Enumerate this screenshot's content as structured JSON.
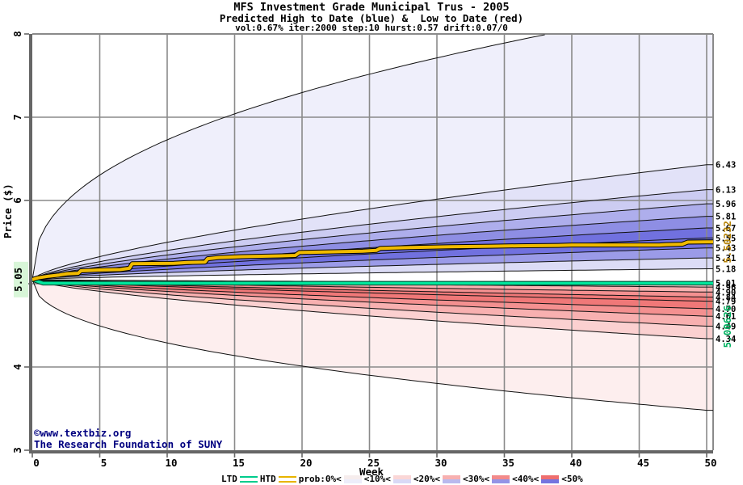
{
  "header": {
    "title": "MFS Investment Grade Municipal Trus - 2005",
    "subtitle": "Predicted High to Date (blue) &  Low to Date (red)",
    "params": "vol:0.67% iter:2000 step:10 hurst:0.57 drift:0.07/0"
  },
  "footer": {
    "line1": "©www.textbiz.org",
    "line2": "The Research Foundation of SUNY",
    "color": "#000080"
  },
  "chart_data": {
    "type": "area",
    "title": "MFS Investment Grade Municipal Trus - 2005",
    "subtitle": "Predicted High to Date (blue) &  Low to Date (red)",
    "params": "vol:0.67% iter:2000 step:10 hurst:0.57 drift:0.07/0",
    "xlabel": "Week",
    "ylabel": "Price ($)",
    "xlim": [
      0,
      50
    ],
    "ylim": [
      3,
      8
    ],
    "x_ticks": [
      0,
      5,
      10,
      15,
      20,
      25,
      30,
      35,
      40,
      45,
      50
    ],
    "y_ticks": [
      3,
      4,
      5,
      6,
      7,
      8
    ],
    "start_price": 5.05,
    "start_label": {
      "text": "5.05",
      "bg": "#d8f6d8"
    },
    "grid_color": "#8a8a8a",
    "axis_color": "#666666",
    "boundary_color": "#111111",
    "high_fan": {
      "description": "predicted High-to-Date percentile boundaries at week 50, inner to outer top-down",
      "boundaries": [
        6.43,
        6.13,
        5.96,
        5.81,
        5.67,
        5.55,
        5.43,
        5.31,
        5.18
      ],
      "boundary_exp": 0.7,
      "envelope": {
        "end": 8.35,
        "exp": 0.42,
        "clip": 8.0
      },
      "band_colors": [
        "#efeffb",
        "#e2e2f8",
        "#ccccf2",
        "#aeaeec",
        "#8e8ee4",
        "#7171df",
        "#7171df",
        "#9b9be8",
        "#dcdcf6"
      ]
    },
    "low_fan": {
      "description": "predicted Low-to-Date percentile boundaries at week 50, top-down (inner labels overlap in source)",
      "boundaries": [
        5.01,
        4.96,
        4.9,
        4.84,
        4.79,
        4.7,
        4.61,
        4.49,
        4.34
      ],
      "boundary_exp": 0.7,
      "envelope": {
        "end": 3.48,
        "exp": 0.45
      },
      "band_colors": [
        "#fbd0d0",
        "#f8b0b0",
        "#f49090",
        "#f07878",
        "#f07878",
        "#f49090",
        "#f8b0b0",
        "#fbd0d0",
        "#fdeeee"
      ]
    },
    "htd": {
      "name": "HTD",
      "final_value": 5.50232,
      "final_label": "5.50232",
      "color": "#f0ba00",
      "edge_color": "#000000",
      "label_color": "#b8860b",
      "points": [
        [
          0,
          5.05
        ],
        [
          0.4,
          5.07
        ],
        [
          1.2,
          5.09
        ],
        [
          2,
          5.105
        ],
        [
          2.6,
          5.12
        ],
        [
          3.4,
          5.125
        ],
        [
          3.6,
          5.155
        ],
        [
          5,
          5.165
        ],
        [
          6.5,
          5.17
        ],
        [
          7.2,
          5.185
        ],
        [
          7.4,
          5.24
        ],
        [
          10.5,
          5.245
        ],
        [
          11.5,
          5.255
        ],
        [
          12.8,
          5.26
        ],
        [
          13,
          5.3
        ],
        [
          13.8,
          5.315
        ],
        [
          15.5,
          5.325
        ],
        [
          18.5,
          5.335
        ],
        [
          19.5,
          5.34
        ],
        [
          19.8,
          5.375
        ],
        [
          23,
          5.385
        ],
        [
          24.5,
          5.39
        ],
        [
          25.5,
          5.4
        ],
        [
          25.8,
          5.425
        ],
        [
          28,
          5.435
        ],
        [
          31,
          5.445
        ],
        [
          34,
          5.45
        ],
        [
          36,
          5.455
        ],
        [
          39,
          5.46
        ],
        [
          40,
          5.465
        ],
        [
          46.5,
          5.465
        ],
        [
          47,
          5.47
        ],
        [
          48.2,
          5.475
        ],
        [
          48.6,
          5.5
        ],
        [
          50,
          5.502
        ]
      ]
    },
    "ltd": {
      "name": "LTD",
      "final_value": 5.00626,
      "final_label": "5.00626",
      "color": "#00e69c",
      "edge_color": "#003d2a",
      "label_color": "#00b060",
      "points": [
        [
          0,
          5.05
        ],
        [
          0.8,
          5.006
        ],
        [
          50,
          5.006
        ]
      ]
    },
    "legend": {
      "ltd_label": "LTD",
      "htd_label": "HTD",
      "ltd_swatch": "#00cc8c",
      "htd_swatch": "#e8b400",
      "prob_labels": [
        "prob:0%<",
        "<10%<",
        "<20%<",
        "<30%<",
        "<40%<",
        "<50%"
      ],
      "prob_swatches": [
        {
          "top": "#f6eded",
          "bottom": "#ededfa"
        },
        {
          "top": "#fad6d6",
          "bottom": "#d9d9f6"
        },
        {
          "top": "#f7b0b0",
          "bottom": "#b9b9ee"
        },
        {
          "top": "#f38a8a",
          "bottom": "#9393e6"
        },
        {
          "top": "#ef6e6e",
          "bottom": "#7474e0"
        }
      ]
    }
  }
}
